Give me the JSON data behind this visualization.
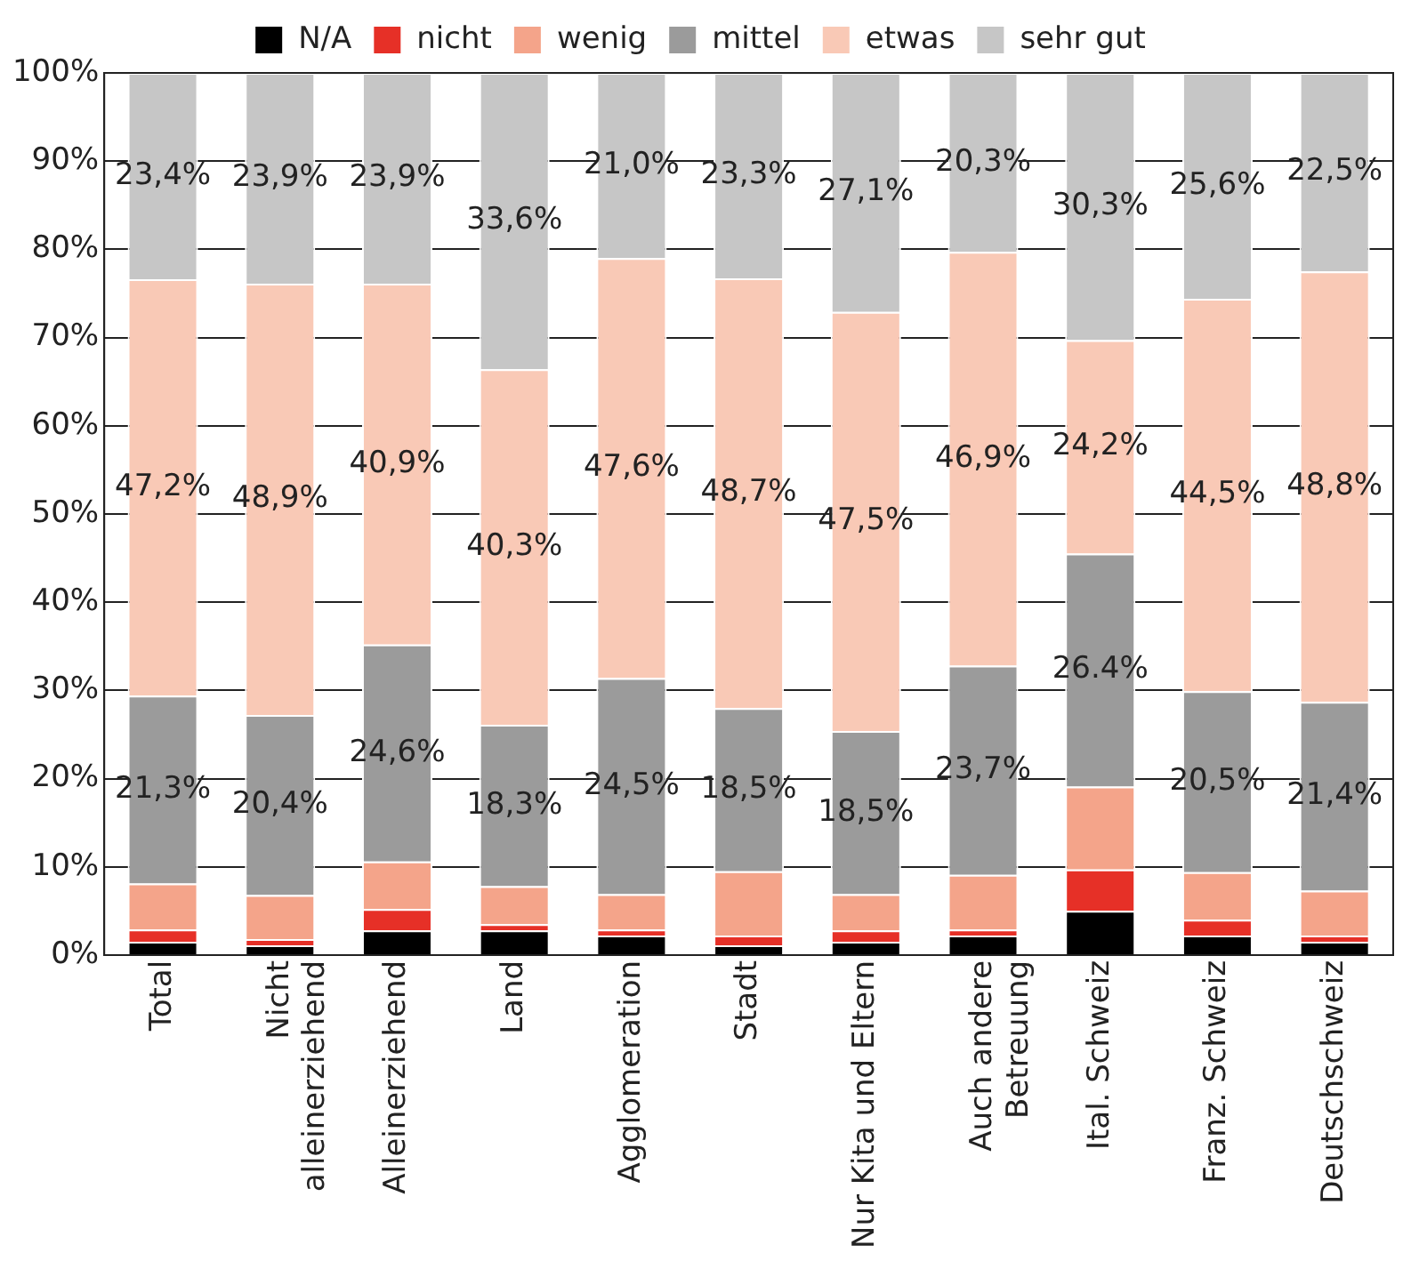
{
  "chart_data": {
    "type": "bar",
    "stacked": true,
    "categories": [
      "Total",
      "Nicht alleinerziehend",
      "Alleinerziehend",
      "Land",
      "Agglomeration",
      "Stadt",
      "Nur Kita und Eltern",
      "Auch andere Betreuung",
      "Ital. Schweiz",
      "Franz. Schweiz",
      "Deutschschweiz"
    ],
    "series": [
      {
        "name": "N/A",
        "color": "#000000",
        "values": [
          1.5,
          1.1,
          2.8,
          2.8,
          2.2,
          1.1,
          1.5,
          2.2,
          5.0,
          2.2,
          1.5
        ]
      },
      {
        "name": "nicht",
        "color": "#e63027",
        "values": [
          1.4,
          0.7,
          2.4,
          0.7,
          0.7,
          1.1,
          1.3,
          0.7,
          4.7,
          1.8,
          0.7
        ]
      },
      {
        "name": "wenig",
        "color": "#f4a48a",
        "values": [
          5.2,
          5.0,
          5.4,
          4.3,
          4.0,
          7.3,
          4.1,
          6.2,
          9.4,
          5.4,
          5.1
        ]
      },
      {
        "name": "mittel",
        "color": "#9b9b9b",
        "values": [
          21.3,
          20.4,
          24.6,
          18.3,
          24.5,
          18.5,
          18.5,
          23.7,
          26.4,
          20.5,
          21.4
        ],
        "value_labels": [
          "21,3%",
          "20,4%",
          "24,6%",
          "18,3%",
          "24,5%",
          "18,5%",
          "18,5%",
          "23,7%",
          "26.4%",
          "20,5%",
          "21,4%"
        ]
      },
      {
        "name": "etwas",
        "color": "#f9c9b6",
        "values": [
          47.2,
          48.9,
          40.9,
          40.3,
          47.6,
          48.7,
          47.5,
          46.9,
          24.2,
          44.5,
          48.8
        ],
        "value_labels": [
          "47,2%",
          "48,9%",
          "40,9%",
          "40,3%",
          "47,6%",
          "48,7%",
          "47,5%",
          "46,9%",
          "24,2%",
          "44,5%",
          "48,8%"
        ]
      },
      {
        "name": "sehr gut",
        "color": "#c6c6c6",
        "values": [
          23.4,
          23.9,
          23.9,
          33.6,
          21.0,
          23.3,
          27.1,
          20.3,
          30.3,
          25.6,
          22.5
        ],
        "value_labels": [
          "23,4%",
          "23,9%",
          "23,9%",
          "33,6%",
          "21,0%",
          "23,3%",
          "27,1%",
          "20,3%",
          "30,3%",
          "25,6%",
          "22,5%"
        ]
      }
    ],
    "ylim": [
      0,
      100
    ],
    "yticks": [
      {
        "value": 0,
        "label": "0%"
      },
      {
        "value": 10,
        "label": "10%"
      },
      {
        "value": 20,
        "label": "20%"
      },
      {
        "value": 30,
        "label": "30%"
      },
      {
        "value": 40,
        "label": "40%"
      },
      {
        "value": 50,
        "label": "50%"
      },
      {
        "value": 60,
        "label": "60%"
      },
      {
        "value": 70,
        "label": "70%"
      },
      {
        "value": 80,
        "label": "80%"
      },
      {
        "value": 90,
        "label": "90%"
      },
      {
        "value": 100,
        "label": "100%"
      }
    ],
    "grid": "y",
    "legend": "top"
  }
}
